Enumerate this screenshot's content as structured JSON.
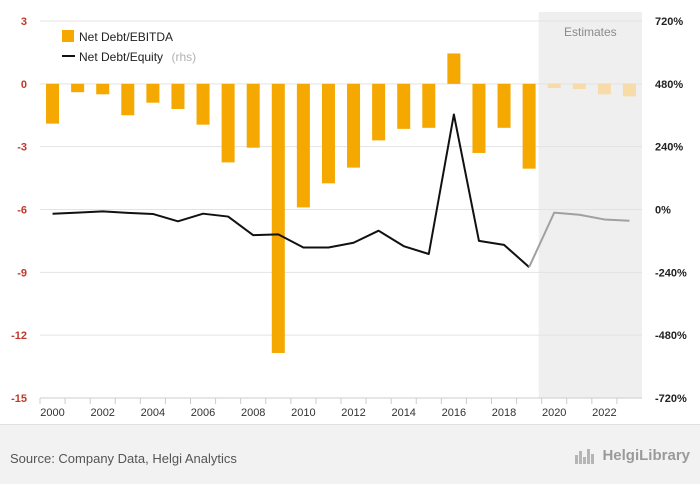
{
  "chart_data": {
    "type": "bar",
    "x": [
      2000,
      2001,
      2002,
      2003,
      2004,
      2005,
      2006,
      2007,
      2008,
      2009,
      2010,
      2011,
      2012,
      2013,
      2014,
      2015,
      2016,
      2017,
      2018,
      2019,
      2020,
      2021,
      2022,
      2023
    ],
    "x_tick_labels": [
      "2000",
      "2002",
      "2004",
      "2006",
      "2008",
      "2010",
      "2012",
      "2014",
      "2016",
      "2018",
      "2020",
      "2022"
    ],
    "y_left_ticks": [
      "3",
      "0",
      "-3",
      "-6",
      "-9",
      "-12",
      "-15"
    ],
    "y_right_ticks": [
      "720%",
      "480%",
      "240%",
      "0%",
      "-240%",
      "-480%",
      "-720%"
    ],
    "ylim_left": [
      -15,
      3
    ],
    "ylim_right": [
      -720,
      720
    ],
    "estimates_from": 2020,
    "estimates_label": "Estimates",
    "series": [
      {
        "name": "Net Debt/EBITDA",
        "axis": "left",
        "kind": "bar",
        "color": "#f5a800",
        "estimate_color": "#f7dcaa",
        "values": [
          -1.9,
          -0.4,
          -0.5,
          -1.5,
          -0.9,
          -1.2,
          -1.95,
          -3.75,
          -3.05,
          -12.85,
          -5.9,
          -4.75,
          -4.0,
          -2.7,
          -2.15,
          -2.1,
          1.45,
          -3.3,
          -2.1,
          -4.05,
          -0.2,
          -0.25,
          -0.5,
          -0.6
        ]
      },
      {
        "name": "Net Debt/Equity",
        "axis": "right",
        "kind": "line",
        "color": "#111111",
        "estimate_color": "#a0a0a0",
        "values": [
          -16,
          -12,
          -7,
          -13,
          -17,
          -45,
          -16,
          -27,
          -98,
          -95,
          -145,
          -145,
          -127,
          -81,
          -140,
          -170,
          363,
          -120,
          -135,
          -220,
          -12,
          -20,
          -38,
          -43
        ]
      }
    ],
    "legend": {
      "bar_label": "Net Debt/EBITDA",
      "line_label": "Net Debt/Equity",
      "line_suffix": "(rhs)"
    },
    "grid": true
  },
  "footer": {
    "source": "Source: Company Data, Helgi Analytics",
    "brand": "HelgiLibrary"
  }
}
